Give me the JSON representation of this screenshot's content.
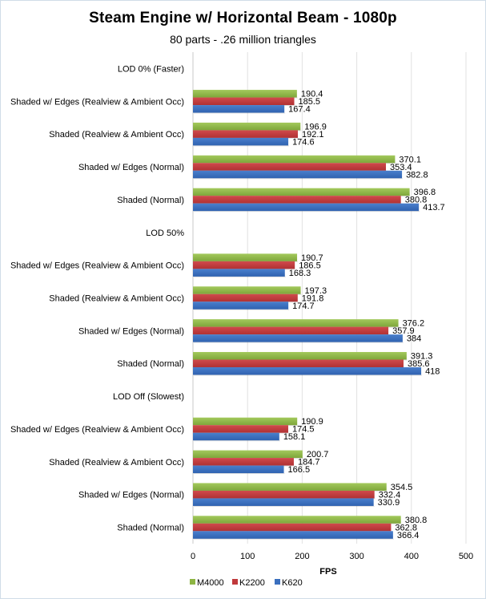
{
  "chart_data": {
    "type": "bar",
    "orientation": "horizontal",
    "title": "Steam Engine w/ Horizontal  Beam - 1080p",
    "subtitle": "80 parts - .26 million triangles",
    "xlabel": "FPS",
    "ylabel": "",
    "xlim": [
      0,
      500
    ],
    "xticks": [
      "0",
      "100",
      "200",
      "300",
      "400",
      "500"
    ],
    "grid": true,
    "legend_position": "bottom-left",
    "categories": [
      "LOD 0% (Faster)",
      "Shaded w/ Edges (Realview & Ambient Occ)",
      "Shaded (Realview & Ambient Occ)",
      "Shaded w/ Edges (Normal)",
      "Shaded (Normal)",
      "LOD 50%",
      "Shaded w/ Edges (Realview & Ambient Occ)",
      "Shaded (Realview & Ambient Occ)",
      "Shaded w/ Edges (Normal)",
      "Shaded (Normal)",
      "LOD Off (Slowest)",
      "Shaded w/ Edges (Realview & Ambient Occ)",
      "Shaded (Realview & Ambient Occ)",
      "Shaded w/ Edges (Normal)",
      "Shaded (Normal)"
    ],
    "series": [
      {
        "name": "M4000",
        "color": "#8db543",
        "values": [
          null,
          190.4,
          196.9,
          370.1,
          396.8,
          null,
          190.7,
          197.3,
          376.2,
          391.3,
          null,
          190.9,
          200.7,
          354.5,
          380.8
        ]
      },
      {
        "name": "K2200",
        "color": "#c0393b",
        "values": [
          null,
          185.5,
          192.1,
          353.4,
          380.8,
          null,
          186.5,
          191.8,
          357.9,
          385.6,
          null,
          174.5,
          184.7,
          332.4,
          362.8
        ]
      },
      {
        "name": "K620",
        "color": "#3a6fbe",
        "values": [
          null,
          167.4,
          174.6,
          382.8,
          413.7,
          null,
          168.3,
          174.7,
          384,
          418,
          null,
          158.1,
          166.5,
          330.9,
          366.4
        ]
      }
    ],
    "value_labels": [
      [
        null,
        "190.4",
        "196.9",
        "370.1",
        "396.8",
        null,
        "190.7",
        "197.3",
        "376.2",
        "391.3",
        null,
        "190.9",
        "200.7",
        "354.5",
        "380.8"
      ],
      [
        null,
        "185.5",
        "192.1",
        "353.4",
        "380.8",
        null,
        "186.5",
        "191.8",
        "357.9",
        "385.6",
        null,
        "174.5",
        "184.7",
        "332.4",
        "362.8"
      ],
      [
        null,
        "167.4",
        "174.6",
        "382.8",
        "413.7",
        null,
        "168.3",
        "174.7",
        "384",
        "418",
        null,
        "158.1",
        "166.5",
        "330.9",
        "366.4"
      ]
    ]
  }
}
